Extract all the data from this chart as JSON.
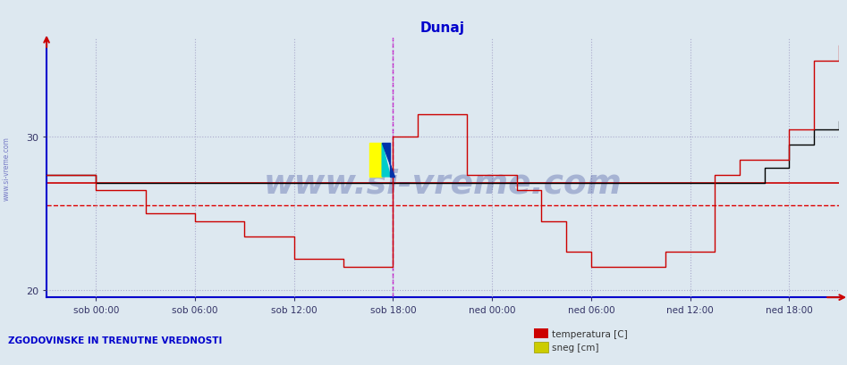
{
  "title": "Dunaj",
  "title_color": "#0000cc",
  "bg_color": "#dde8f0",
  "plot_bg_color": "#dde8f0",
  "grid_color": "#aaaacc",
  "ylim": [
    19.5,
    36.5
  ],
  "yticks": [
    20,
    30
  ],
  "xlim": [
    0,
    576
  ],
  "x_labels": [
    "sob 00:00",
    "sob 06:00",
    "sob 12:00",
    "sob 18:00",
    "ned 00:00",
    "ned 06:00",
    "ned 12:00",
    "ned 18:00"
  ],
  "x_positions": [
    72,
    216,
    360,
    504,
    648,
    792,
    936,
    1080
  ],
  "avg_line_y": 25.5,
  "avg_line_color": "#dd0000",
  "solid_line_y": 27.0,
  "solid_line_color": "#cc0000",
  "vline_x": 504,
  "vline_color": "#cc00cc",
  "temp_color": "#cc0000",
  "watermark_text": "www.si-vreme.com",
  "watermark_color": "#1a2a8a",
  "watermark_alpha": 0.28,
  "bottom_left_text": "ZGODOVINSKE IN TRENUTNE VREDNOSTI",
  "legend_labels": [
    "temperatura [C]",
    "sneg [cm]"
  ],
  "legend_colors": [
    "#cc0000",
    "#cccc00"
  ],
  "temp_steps_x": [
    0,
    36,
    72,
    108,
    144,
    180,
    216,
    252,
    288,
    324,
    360,
    396,
    432,
    468,
    504,
    540,
    576,
    612,
    648,
    684,
    720,
    756,
    792,
    828,
    864,
    900,
    936,
    972,
    1008,
    1044,
    1080,
    1116,
    1152
  ],
  "temp_steps_y": [
    27.5,
    27.5,
    26.5,
    26.5,
    25.0,
    25.0,
    24.5,
    24.5,
    23.5,
    23.5,
    22.0,
    22.0,
    21.5,
    21.5,
    30.0,
    31.5,
    31.5,
    27.5,
    27.5,
    26.5,
    24.5,
    22.5,
    21.5,
    21.5,
    21.5,
    22.5,
    22.5,
    27.5,
    28.5,
    28.5,
    30.5,
    35.0,
    36.0
  ],
  "black_steps_x": [
    0,
    36,
    72,
    108,
    504,
    540,
    576,
    1044,
    1080,
    1116,
    1152
  ],
  "black_steps_y": [
    27.5,
    27.5,
    27.0,
    27.0,
    27.0,
    27.0,
    27.0,
    28.0,
    29.5,
    30.5,
    31.0
  ]
}
